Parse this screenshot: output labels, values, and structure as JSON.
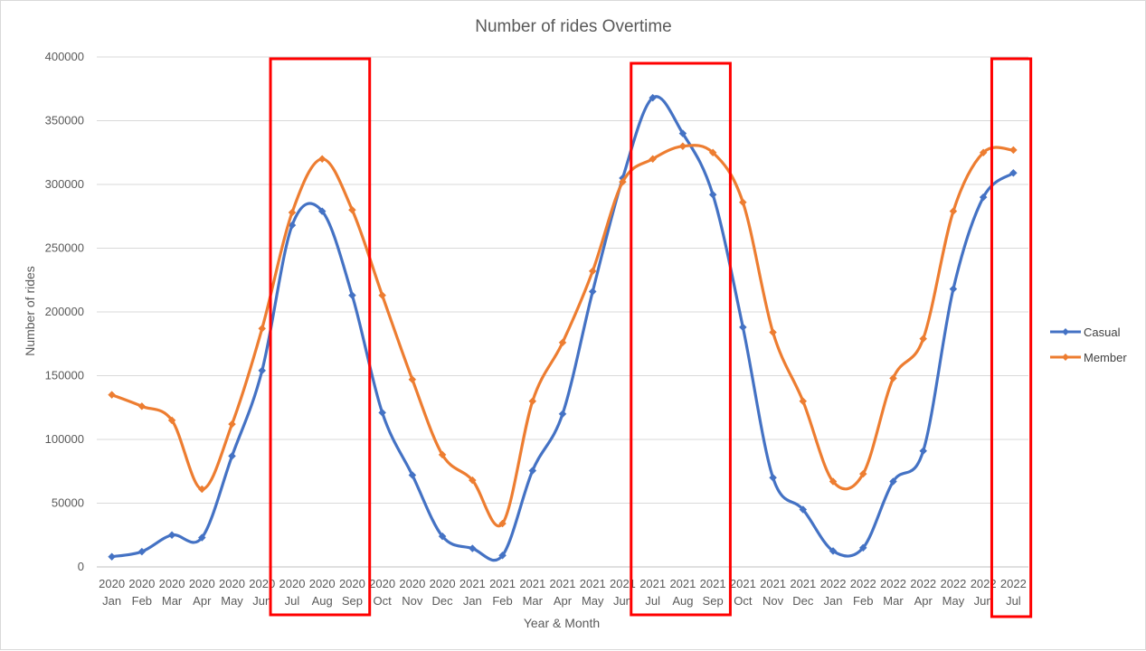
{
  "chart_data": {
    "type": "line",
    "title": "Number of rides Overtime",
    "xlabel": "Year & Month",
    "ylabel": "Number of rides",
    "ylim": [
      0,
      400000
    ],
    "yticks": [
      0,
      50000,
      100000,
      150000,
      200000,
      250000,
      300000,
      350000,
      400000
    ],
    "grid": true,
    "legend_position": "right",
    "categories": [
      {
        "year": "2020",
        "month": "Jan"
      },
      {
        "year": "2020",
        "month": "Feb"
      },
      {
        "year": "2020",
        "month": "Mar"
      },
      {
        "year": "2020",
        "month": "Apr"
      },
      {
        "year": "2020",
        "month": "May"
      },
      {
        "year": "2020",
        "month": "Jun"
      },
      {
        "year": "2020",
        "month": "Jul"
      },
      {
        "year": "2020",
        "month": "Aug"
      },
      {
        "year": "2020",
        "month": "Sep"
      },
      {
        "year": "2020",
        "month": "Oct"
      },
      {
        "year": "2020",
        "month": "Nov"
      },
      {
        "year": "2020",
        "month": "Dec"
      },
      {
        "year": "2021",
        "month": "Jan"
      },
      {
        "year": "2021",
        "month": "Feb"
      },
      {
        "year": "2021",
        "month": "Mar"
      },
      {
        "year": "2021",
        "month": "Apr"
      },
      {
        "year": "2021",
        "month": "May"
      },
      {
        "year": "2021",
        "month": "Jun"
      },
      {
        "year": "2021",
        "month": "Jul"
      },
      {
        "year": "2021",
        "month": "Aug"
      },
      {
        "year": "2021",
        "month": "Sep"
      },
      {
        "year": "2021",
        "month": "Oct"
      },
      {
        "year": "2021",
        "month": "Nov"
      },
      {
        "year": "2021",
        "month": "Dec"
      },
      {
        "year": "2022",
        "month": "Jan"
      },
      {
        "year": "2022",
        "month": "Feb"
      },
      {
        "year": "2022",
        "month": "Mar"
      },
      {
        "year": "2022",
        "month": "Apr"
      },
      {
        "year": "2022",
        "month": "May"
      },
      {
        "year": "2022",
        "month": "Jun"
      },
      {
        "year": "2022",
        "month": "Jul"
      }
    ],
    "series": [
      {
        "name": "Casual",
        "color": "#4472C4",
        "values": [
          8000,
          12000,
          25000,
          23000,
          87000,
          154000,
          268000,
          279000,
          213000,
          121000,
          72000,
          24000,
          14500,
          9000,
          75500,
          120000,
          216000,
          305000,
          368000,
          340000,
          292000,
          188000,
          70000,
          45000,
          12500,
          15000,
          67000,
          91000,
          218000,
          290000,
          309000
        ]
      },
      {
        "name": "Member",
        "color": "#ED7D31",
        "values": [
          135000,
          126000,
          115000,
          61000,
          112000,
          187000,
          278000,
          320000,
          280000,
          213000,
          147000,
          88000,
          68000,
          34000,
          130000,
          176000,
          232000,
          302000,
          320000,
          330000,
          325000,
          286000,
          184000,
          130000,
          67000,
          73000,
          148000,
          179000,
          279000,
          325000,
          327000
        ]
      }
    ],
    "highlights": [
      {
        "type": "rectangle",
        "color": "#FF0000",
        "from": "2020 Jul",
        "to": "2020 Sep"
      },
      {
        "type": "rectangle",
        "color": "#FF0000",
        "from": "2021 Jul",
        "to": "2021 Sep"
      },
      {
        "type": "rectangle",
        "color": "#FF0000",
        "from": "2022 Jul",
        "to": "2022 Jul"
      }
    ]
  }
}
